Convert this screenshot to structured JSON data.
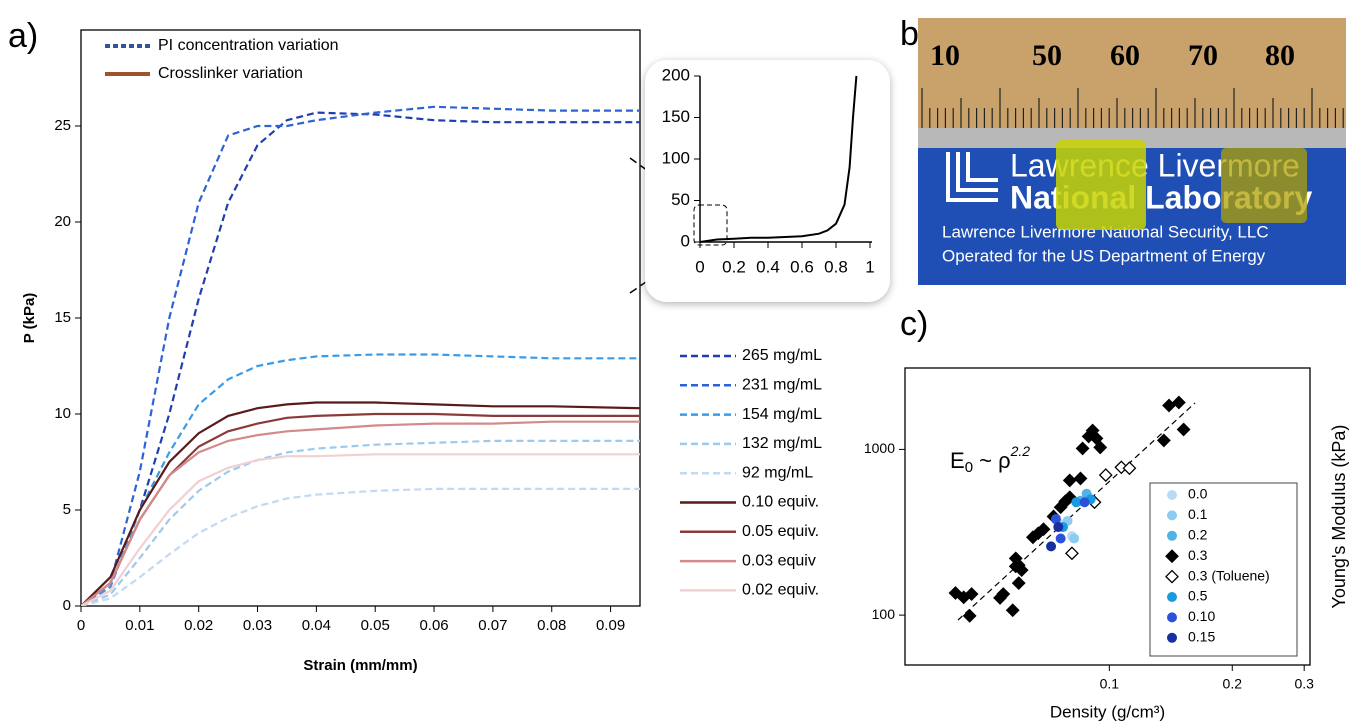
{
  "panel_labels": [
    "a)",
    "b)",
    "c)"
  ],
  "chart_data": [
    {
      "type": "line",
      "xlabel": "Strain (mm/mm)",
      "ylabel": "P (kPa)",
      "frame": true,
      "legend": true,
      "x": [
        0,
        0.005,
        0.01,
        0.015,
        0.02,
        0.025,
        0.03,
        0.035,
        0.04,
        0.05,
        0.06,
        0.07,
        0.08,
        0.095
      ],
      "xlim": [
        0,
        0.095
      ],
      "ylim": [
        0,
        30
      ],
      "xticks": [
        0,
        0.01,
        0.02,
        0.03,
        0.04,
        0.05,
        0.06,
        0.07,
        0.08,
        0.09
      ],
      "yticks": [
        0,
        5,
        10,
        15,
        20,
        25
      ],
      "style_legend": [
        {
          "label": "PI concentration variation",
          "color": "#2f5597",
          "dash": true
        },
        {
          "label": "Crosslinker variation",
          "color": "#a0522d",
          "dash": false
        }
      ],
      "series": [
        {
          "name": "265 mg/mL",
          "color": "#1f3fb0",
          "dash": true,
          "values": [
            0,
            1,
            5,
            10,
            16,
            21,
            24,
            25.3,
            25.7,
            25.6,
            25.3,
            25.2,
            25.2,
            25.2
          ]
        },
        {
          "name": "231 mg/mL",
          "color": "#2e63d6",
          "dash": true,
          "values": [
            0,
            1.2,
            7,
            15,
            21,
            24.5,
            25,
            25,
            25.3,
            25.7,
            26,
            25.9,
            25.8,
            25.8
          ]
        },
        {
          "name": "154 mg/mL",
          "color": "#3a9be8",
          "dash": true,
          "values": [
            0,
            1,
            5,
            8,
            10.5,
            11.8,
            12.5,
            12.8,
            13,
            13.1,
            13.1,
            13,
            12.9,
            12.9
          ]
        },
        {
          "name": "132 mg/mL",
          "color": "#9cc9ef",
          "dash": true,
          "values": [
            0,
            0.6,
            2.5,
            4.5,
            6,
            7,
            7.6,
            8,
            8.2,
            8.4,
            8.5,
            8.6,
            8.6,
            8.6
          ]
        },
        {
          "name": "92 mg/mL",
          "color": "#c3d9f3",
          "dash": true,
          "values": [
            0,
            0.4,
            1.5,
            2.7,
            3.8,
            4.6,
            5.2,
            5.6,
            5.8,
            6,
            6.1,
            6.1,
            6.1,
            6.1
          ]
        },
        {
          "name": "0.10 equiv.",
          "color": "#5a1a1a",
          "dash": false,
          "values": [
            0,
            1.5,
            5,
            7.5,
            9,
            9.9,
            10.3,
            10.5,
            10.6,
            10.6,
            10.5,
            10.4,
            10.4,
            10.3
          ]
        },
        {
          "name": "0.05 equiv.",
          "color": "#8b3a3a",
          "dash": false,
          "values": [
            0,
            1.2,
            4.5,
            6.8,
            8.3,
            9.1,
            9.5,
            9.8,
            9.9,
            10,
            10,
            9.9,
            9.9,
            9.9
          ]
        },
        {
          "name": "0.03 equiv",
          "color": "#d48a8a",
          "dash": false,
          "values": [
            0,
            1.2,
            4.5,
            6.8,
            8,
            8.6,
            8.9,
            9.1,
            9.2,
            9.4,
            9.5,
            9.5,
            9.6,
            9.6
          ]
        },
        {
          "name": "0.02 equiv.",
          "color": "#f0d0d0",
          "dash": false,
          "values": [
            0,
            0.8,
            3,
            5,
            6.5,
            7.2,
            7.6,
            7.8,
            7.8,
            7.9,
            7.9,
            7.9,
            7.9,
            7.9
          ]
        }
      ]
    },
    {
      "type": "line",
      "frame": false,
      "legend": false,
      "x": [
        0,
        0.1,
        0.2,
        0.3,
        0.4,
        0.5,
        0.6,
        0.7,
        0.75,
        0.8,
        0.85,
        0.88,
        0.9,
        0.92
      ],
      "xlim": [
        0,
        1
      ],
      "ylim": [
        0,
        200
      ],
      "xticks": [
        0,
        0.2,
        0.4,
        0.6,
        0.8,
        1
      ],
      "yticks": [
        0,
        50,
        100,
        150,
        200
      ],
      "series": [
        {
          "color": "#000000",
          "dash": false,
          "values": [
            0,
            3,
            4,
            5,
            5,
            6,
            7,
            10,
            14,
            22,
            45,
            90,
            150,
            200
          ]
        }
      ]
    },
    {
      "type": "scatter",
      "xlabel": "Density (g/cm³)",
      "ylabel": "Young's Modulus (kPa)",
      "frame": true,
      "legend": true,
      "log_x": true,
      "log_y": true,
      "xlim": [
        0.0316,
        0.31
      ],
      "ylim": [
        50,
        3100
      ],
      "xticks": [
        0.1,
        0.2,
        0.3
      ],
      "yticks": [
        100,
        1000
      ],
      "annotation": {
        "base": "E",
        "sub": "0",
        "mid": " ~ ρ",
        "sup": "2.2"
      },
      "series": [
        {
          "name": "0.0",
          "color": "#b8dcf5",
          "marker": "circle",
          "x": [
            0.075,
            0.081
          ],
          "values": [
            360,
            300
          ]
        },
        {
          "name": "0.1",
          "color": "#8ecbf0",
          "marker": "circle",
          "x": [
            0.079,
            0.082
          ],
          "values": [
            370,
            290
          ]
        },
        {
          "name": "0.2",
          "color": "#4fb3ea",
          "marker": "circle",
          "x": [
            0.078,
            0.085,
            0.088
          ],
          "values": [
            480,
            490,
            540
          ]
        },
        {
          "name": "0.3",
          "color": "#000000",
          "marker": "diamond",
          "x": [
            0.042,
            0.044,
            0.046,
            0.0455,
            0.054,
            0.055,
            0.058,
            0.059,
            0.059,
            0.06,
            0.06,
            0.061,
            0.065,
            0.067,
            0.069,
            0.073,
            0.076,
            0.078,
            0.08,
            0.08,
            0.085,
            0.086,
            0.089,
            0.091,
            0.093,
            0.095,
            0.136,
            0.14,
            0.148,
            0.152
          ],
          "values": [
            136,
            128,
            134,
            99,
            127,
            134,
            107,
            220,
            197,
            156,
            200,
            187,
            295,
            312,
            330,
            394,
            448,
            486,
            514,
            650,
            668,
            1014,
            1198,
            1301,
            1165,
            1028,
            1133,
            1841,
            1919,
            1319
          ]
        },
        {
          "name": "0.3 (Toluene)",
          "color": "#000000",
          "marker": "diamond-open",
          "x": [
            0.081,
            0.092,
            0.098,
            0.107,
            0.112
          ],
          "values": [
            236,
            480,
            700,
            780,
            770
          ]
        },
        {
          "name": "0.5",
          "color": "#1a9be0",
          "marker": "circle",
          "x": [
            0.077,
            0.083,
            0.09
          ],
          "values": [
            340,
            480,
            500
          ]
        },
        {
          "name": "0.10",
          "color": "#2b52d9",
          "marker": "circle",
          "x": [
            0.074,
            0.076,
            0.087
          ],
          "values": [
            380,
            290,
            480
          ]
        },
        {
          "name": "0.15",
          "color": "#1730a0",
          "marker": "circle",
          "x": [
            0.072,
            0.075
          ],
          "values": [
            260,
            340
          ]
        }
      ]
    }
  ],
  "photo": {
    "ruler_numbers": [
      "10",
      "50",
      "60",
      "70",
      "80"
    ],
    "logo_line1": "Lawrence Livermore",
    "logo_line2": "National Laboratory",
    "caption1": "Lawrence Livermore National Security, LLC",
    "caption2": "Operated for the US Department of Energy"
  }
}
